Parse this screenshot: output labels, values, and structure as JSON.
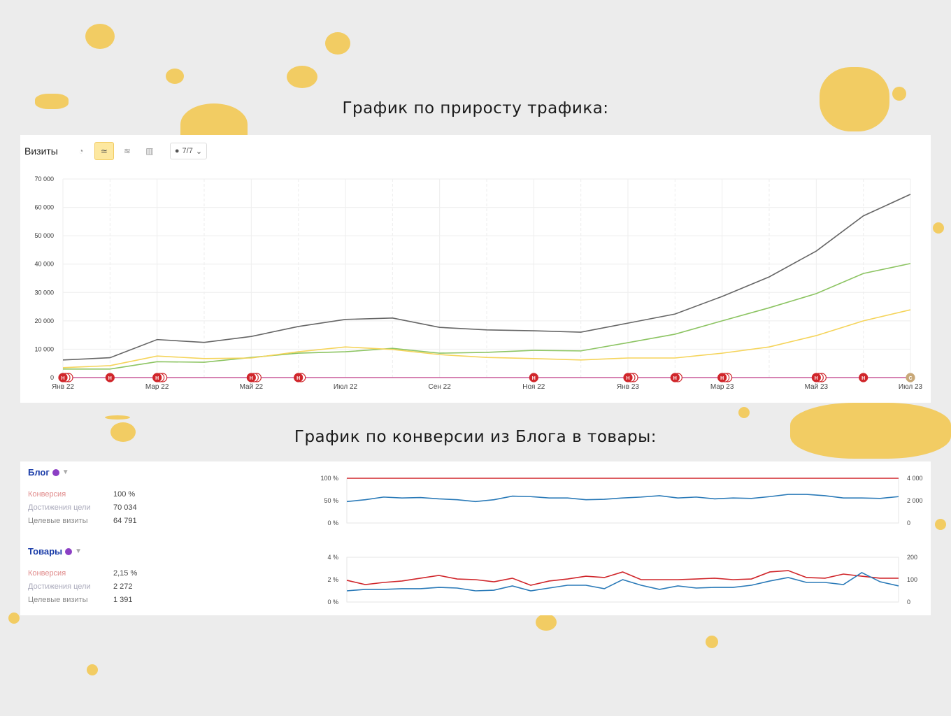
{
  "headings": {
    "traffic": "График по приросту трафика:",
    "conversion": "График по конверсии из Блога в товары:"
  },
  "toolbar": {
    "title": "Визиты",
    "icons": [
      "pie-icon",
      "line-chart-icon",
      "area-chart-icon",
      "bar-chart-icon"
    ],
    "annotations_select": "7/7"
  },
  "colors": {
    "accent": "#f2cc63",
    "gray_series": "#666666",
    "green_series": "#8cc462",
    "yellow_series": "#f5d45a",
    "red": "#d0262b",
    "blue": "#2a7ab8",
    "goal_title": "#1a3ca8"
  },
  "chart_data": [
    {
      "type": "line",
      "title": "",
      "xlabel": "",
      "ylabel": "",
      "categories": [
        "Янв 22",
        "Фев 22",
        "Мар 22",
        "Апр 22",
        "Май 22",
        "Июн 22",
        "Июл 22",
        "Авг 22",
        "Сен 22",
        "Окт 22",
        "Ноя 22",
        "Дек 22",
        "Янв 23",
        "Фев 23",
        "Мар 23",
        "Апр 23",
        "Май 23",
        "Июн 23",
        "Июл 23"
      ],
      "x_tick_labels": [
        "Янв 22",
        "Мар 22",
        "Май 22",
        "Июл 22",
        "Сен 22",
        "Ноя 22",
        "Янв 23",
        "Мар 23",
        "Май 23",
        "Июл 23"
      ],
      "y_tick_labels": [
        "0",
        "10 000",
        "20 000",
        "30 000",
        "40 000",
        "50 000",
        "60 000",
        "70 000"
      ],
      "ylim": [
        0,
        70000
      ],
      "grid": true,
      "series": [
        {
          "color": "#666666",
          "values": [
            6200,
            7000,
            13400,
            12400,
            14500,
            18000,
            20500,
            21000,
            17700,
            16800,
            16500,
            16000,
            19200,
            22400,
            28600,
            35500,
            44600,
            57000,
            64600
          ]
        },
        {
          "color": "#8cc462",
          "values": [
            3000,
            3000,
            5600,
            5400,
            7100,
            8600,
            9100,
            10300,
            8600,
            8900,
            9600,
            9400,
            12300,
            15300,
            20000,
            24600,
            29600,
            36700,
            40200
          ]
        },
        {
          "color": "#f5d45a",
          "values": [
            3500,
            4200,
            7600,
            6700,
            6900,
            9100,
            10800,
            9900,
            8100,
            7100,
            6700,
            6200,
            6900,
            6900,
            8600,
            10800,
            14800,
            20000,
            23900
          ]
        }
      ],
      "annotation_markers": [
        {
          "month": "Янв 22",
          "label": "Н",
          "count": 3
        },
        {
          "month": "Фев 22",
          "label": "Н",
          "count": 1
        },
        {
          "month": "Мар 22",
          "label": "Н",
          "count": 3
        },
        {
          "month": "Май 22",
          "label": "Н",
          "count": 3
        },
        {
          "month": "Июн 22",
          "label": "Н",
          "count": 2
        },
        {
          "month": "Ноя 22",
          "label": "Н",
          "count": 1
        },
        {
          "month": "Янв 23",
          "label": "Н",
          "count": 3
        },
        {
          "month": "Фев 23",
          "label": "Н",
          "count": 2
        },
        {
          "month": "Мар 23",
          "label": "Н",
          "count": 3
        },
        {
          "month": "Май 23",
          "label": "Н",
          "count": 3
        },
        {
          "month": "Июн 23",
          "label": "Н",
          "count": 1
        },
        {
          "month": "Июл 23",
          "label": "С",
          "count": 1
        }
      ]
    },
    {
      "type": "line",
      "title": "Блог",
      "y_tick_labels_left": [
        "0 %",
        "50 %",
        "100 %"
      ],
      "y_tick_labels_right": [
        "0",
        "2 000",
        "4 000"
      ],
      "ylim": [
        0,
        100
      ],
      "series": [
        {
          "color": "#d0262b",
          "values": [
            100,
            100,
            100,
            100,
            100,
            100,
            100,
            100,
            100,
            100,
            100,
            100,
            100,
            100,
            100,
            100,
            100,
            100,
            100,
            100,
            100,
            100,
            100,
            100,
            100,
            100,
            100,
            100,
            100,
            100,
            100
          ]
        },
        {
          "color": "#2a7ab8",
          "values": [
            48,
            52,
            58,
            56,
            57,
            54,
            52,
            48,
            52,
            60,
            59,
            56,
            56,
            52,
            53,
            56,
            58,
            61,
            56,
            58,
            54,
            56,
            55,
            59,
            64,
            64,
            61,
            56,
            56,
            55,
            59
          ]
        }
      ]
    },
    {
      "type": "line",
      "title": "Товары",
      "y_tick_labels_left": [
        "0 %",
        "2 %",
        "4 %"
      ],
      "y_tick_labels_right": [
        "0",
        "100",
        "200"
      ],
      "ylim": [
        0,
        4
      ],
      "series": [
        {
          "color": "#d0262b",
          "values": [
            1.94,
            1.56,
            1.75,
            1.88,
            2.13,
            2.38,
            2.06,
            2.0,
            1.81,
            2.13,
            1.5,
            1.88,
            2.06,
            2.31,
            2.19,
            2.69,
            2.0,
            2.0,
            2.0,
            2.06,
            2.13,
            2.0,
            2.06,
            2.69,
            2.81,
            2.19,
            2.13,
            2.5,
            2.31,
            2.13,
            2.13
          ]
        },
        {
          "color": "#2a7ab8",
          "values": [
            1.0,
            1.13,
            1.13,
            1.19,
            1.19,
            1.31,
            1.25,
            1.0,
            1.06,
            1.44,
            1.0,
            1.25,
            1.5,
            1.5,
            1.19,
            2.0,
            1.5,
            1.13,
            1.44,
            1.25,
            1.31,
            1.31,
            1.5,
            1.88,
            2.19,
            1.75,
            1.75,
            1.56,
            2.63,
            1.81,
            1.44
          ]
        }
      ]
    }
  ],
  "goals": [
    {
      "title": "Блог",
      "rows": [
        {
          "label": "Конверсия",
          "value": "100 %"
        },
        {
          "label": "Достижения цели",
          "value": "70 034"
        },
        {
          "label": "Целевые визиты",
          "value": "64 791"
        }
      ]
    },
    {
      "title": "Товары",
      "rows": [
        {
          "label": "Конверсия",
          "value": "2,15 %"
        },
        {
          "label": "Достижения цели",
          "value": "2 272"
        },
        {
          "label": "Целевые визиты",
          "value": "1 391"
        }
      ]
    }
  ]
}
